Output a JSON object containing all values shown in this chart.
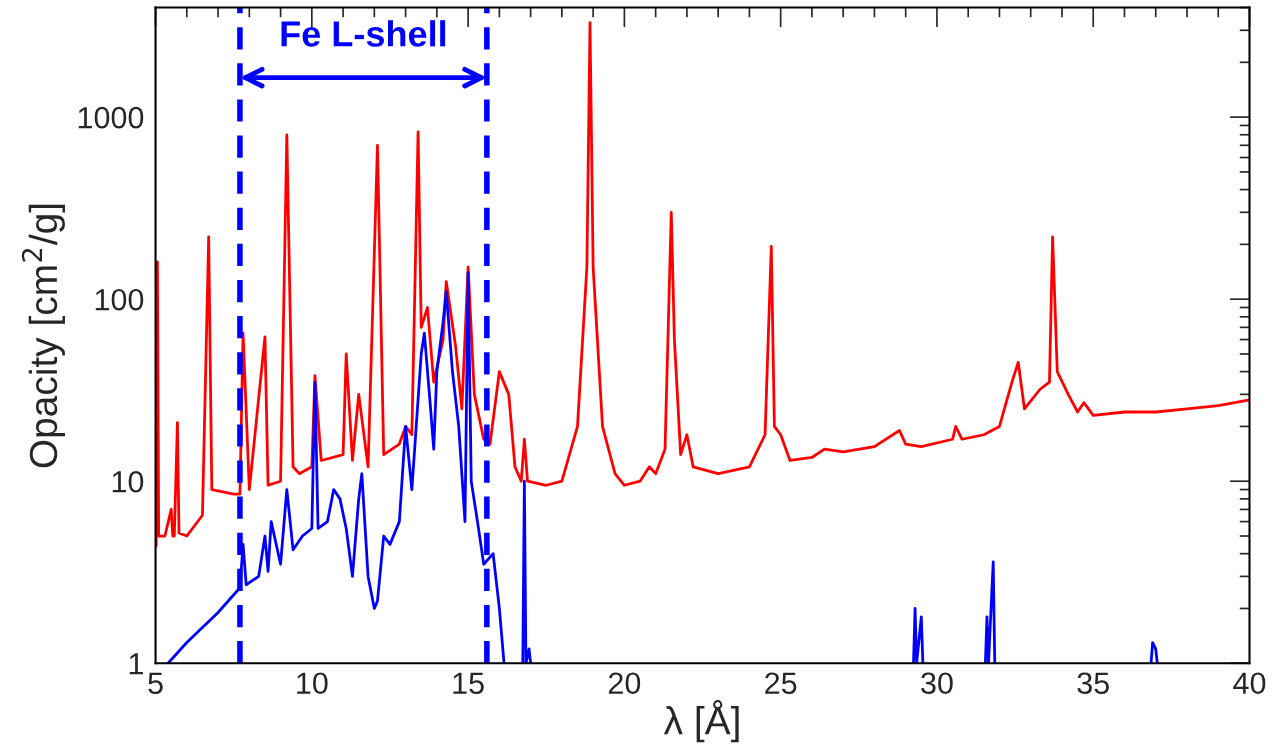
{
  "chart_data": {
    "type": "line",
    "xlabel": "λ [Å]",
    "ylabel": "Opacity [cm$^{2}$/g]",
    "xlim": [
      5,
      40
    ],
    "xticks": [
      5,
      10,
      15,
      20,
      25,
      30,
      35,
      40
    ],
    "ylim": [
      1,
      4000
    ],
    "yticks": [
      1,
      10,
      100,
      1000
    ],
    "log": "y",
    "grid": false,
    "ref_lines": [
      {
        "axis": "x",
        "value": 7.7,
        "color": "#0000ff",
        "line_style": "dashed"
      },
      {
        "axis": "x",
        "value": 15.6,
        "color": "#0000ff",
        "line_style": "dashed"
      }
    ],
    "annotations": [
      "Fe L-shell"
    ],
    "series": [
      {
        "color": "#ff0000",
        "x": [
          5.02,
          5.06,
          5.1,
          5.3,
          5.5,
          5.55,
          5.6,
          5.7,
          5.75,
          6.0,
          6.5,
          6.7,
          6.8,
          7.5,
          7.7,
          7.8,
          8.0,
          8.5,
          8.6,
          9.0,
          9.2,
          9.4,
          9.6,
          10.0,
          10.1,
          10.3,
          11.0,
          11.1,
          11.3,
          11.5,
          11.8,
          12.1,
          12.3,
          12.8,
          13.0,
          13.2,
          13.4,
          13.5,
          13.7,
          13.9,
          14.2,
          14.3,
          14.6,
          14.8,
          15.0,
          15.2,
          15.5,
          15.7,
          16.0,
          16.3,
          16.5,
          16.7,
          16.8,
          16.9,
          17.5,
          18.0,
          18.5,
          18.8,
          18.9,
          19.0,
          19.3,
          19.7,
          20.0,
          20.5,
          20.8,
          21.0,
          21.3,
          21.5,
          21.6,
          21.8,
          22.0,
          22.2,
          23.0,
          24.0,
          24.5,
          24.7,
          24.8,
          25.0,
          25.3,
          26.0,
          26.4,
          27.0,
          28.0,
          28.8,
          29.0,
          29.5,
          30.5,
          30.6,
          30.8,
          31.5,
          32.0,
          32.4,
          32.6,
          32.8,
          33.3,
          33.6,
          33.7,
          33.85,
          34.2,
          34.5,
          34.7,
          35.0,
          36.0,
          37.0,
          38.0,
          39.0,
          40.0
        ],
        "values": [
          4.4,
          160,
          5.0,
          5.0,
          7,
          5.0,
          5.0,
          21,
          5.2,
          5.0,
          6.5,
          220,
          9,
          8.5,
          8.5,
          65,
          9,
          62,
          9.5,
          10,
          800,
          12,
          11,
          12,
          38,
          13,
          14,
          50,
          13,
          30,
          12,
          700,
          14,
          16,
          20,
          18,
          830,
          70,
          90,
          35,
          60,
          125,
          55,
          25,
          150,
          30,
          17,
          16,
          40,
          30,
          12,
          10,
          17,
          10,
          9.5,
          10,
          20,
          150,
          3300,
          150,
          20,
          11,
          9.5,
          10,
          12,
          11,
          15,
          300,
          60,
          14,
          18,
          12,
          11,
          12,
          18,
          195,
          20,
          18,
          13,
          13.5,
          15,
          14.5,
          15.5,
          19,
          16,
          15.5,
          17,
          20,
          17,
          18,
          20,
          35,
          45,
          25,
          32,
          35,
          220,
          40,
          30,
          24,
          27,
          23,
          24,
          24,
          25,
          26,
          28
        ]
      },
      {
        "color": "#0000ff",
        "x": [
          5.4,
          6.0,
          7.0,
          7.7,
          7.8,
          7.9,
          8.3,
          8.5,
          8.6,
          8.7,
          9.0,
          9.2,
          9.4,
          9.7,
          10.0,
          10.1,
          10.2,
          10.5,
          10.7,
          10.9,
          11.1,
          11.3,
          11.5,
          11.6,
          11.8,
          12.0,
          12.1,
          12.3,
          12.5,
          12.8,
          13.0,
          13.2,
          13.5,
          13.6,
          13.8,
          13.9,
          14.0,
          14.2,
          14.3,
          14.5,
          14.7,
          14.9,
          15.0,
          15.1,
          15.3,
          15.5,
          15.8,
          16.0,
          16.15,
          16.5,
          16.75,
          16.8,
          16.85,
          16.95,
          17.0,
          18.0,
          29.25,
          29.3,
          29.35,
          29.5,
          29.55,
          30.0,
          31.55,
          31.6,
          31.65,
          31.8,
          31.85,
          32.0,
          36.85,
          36.9,
          37.0,
          37.05
        ],
        "values": [
          1.0,
          1.3,
          1.9,
          2.6,
          4.5,
          2.7,
          3.0,
          5,
          3.2,
          6,
          3.5,
          9,
          4.2,
          5,
          5.5,
          35,
          5.5,
          6,
          9,
          8,
          5.5,
          3,
          8,
          11,
          3,
          2,
          2.2,
          5,
          4.5,
          6,
          20,
          9,
          50,
          65,
          25,
          15,
          40,
          75,
          110,
          40,
          20,
          6,
          140,
          10,
          6,
          3.5,
          4,
          2,
          1.0,
          null,
          1.0,
          10,
          1.0,
          1.2,
          1.0,
          null,
          1.0,
          2.0,
          1.0,
          1.8,
          1.0,
          null,
          1.0,
          1.8,
          1.0,
          3.6,
          1.0,
          null,
          1.0,
          1.3,
          1.2,
          1.0
        ]
      }
    ]
  }
}
